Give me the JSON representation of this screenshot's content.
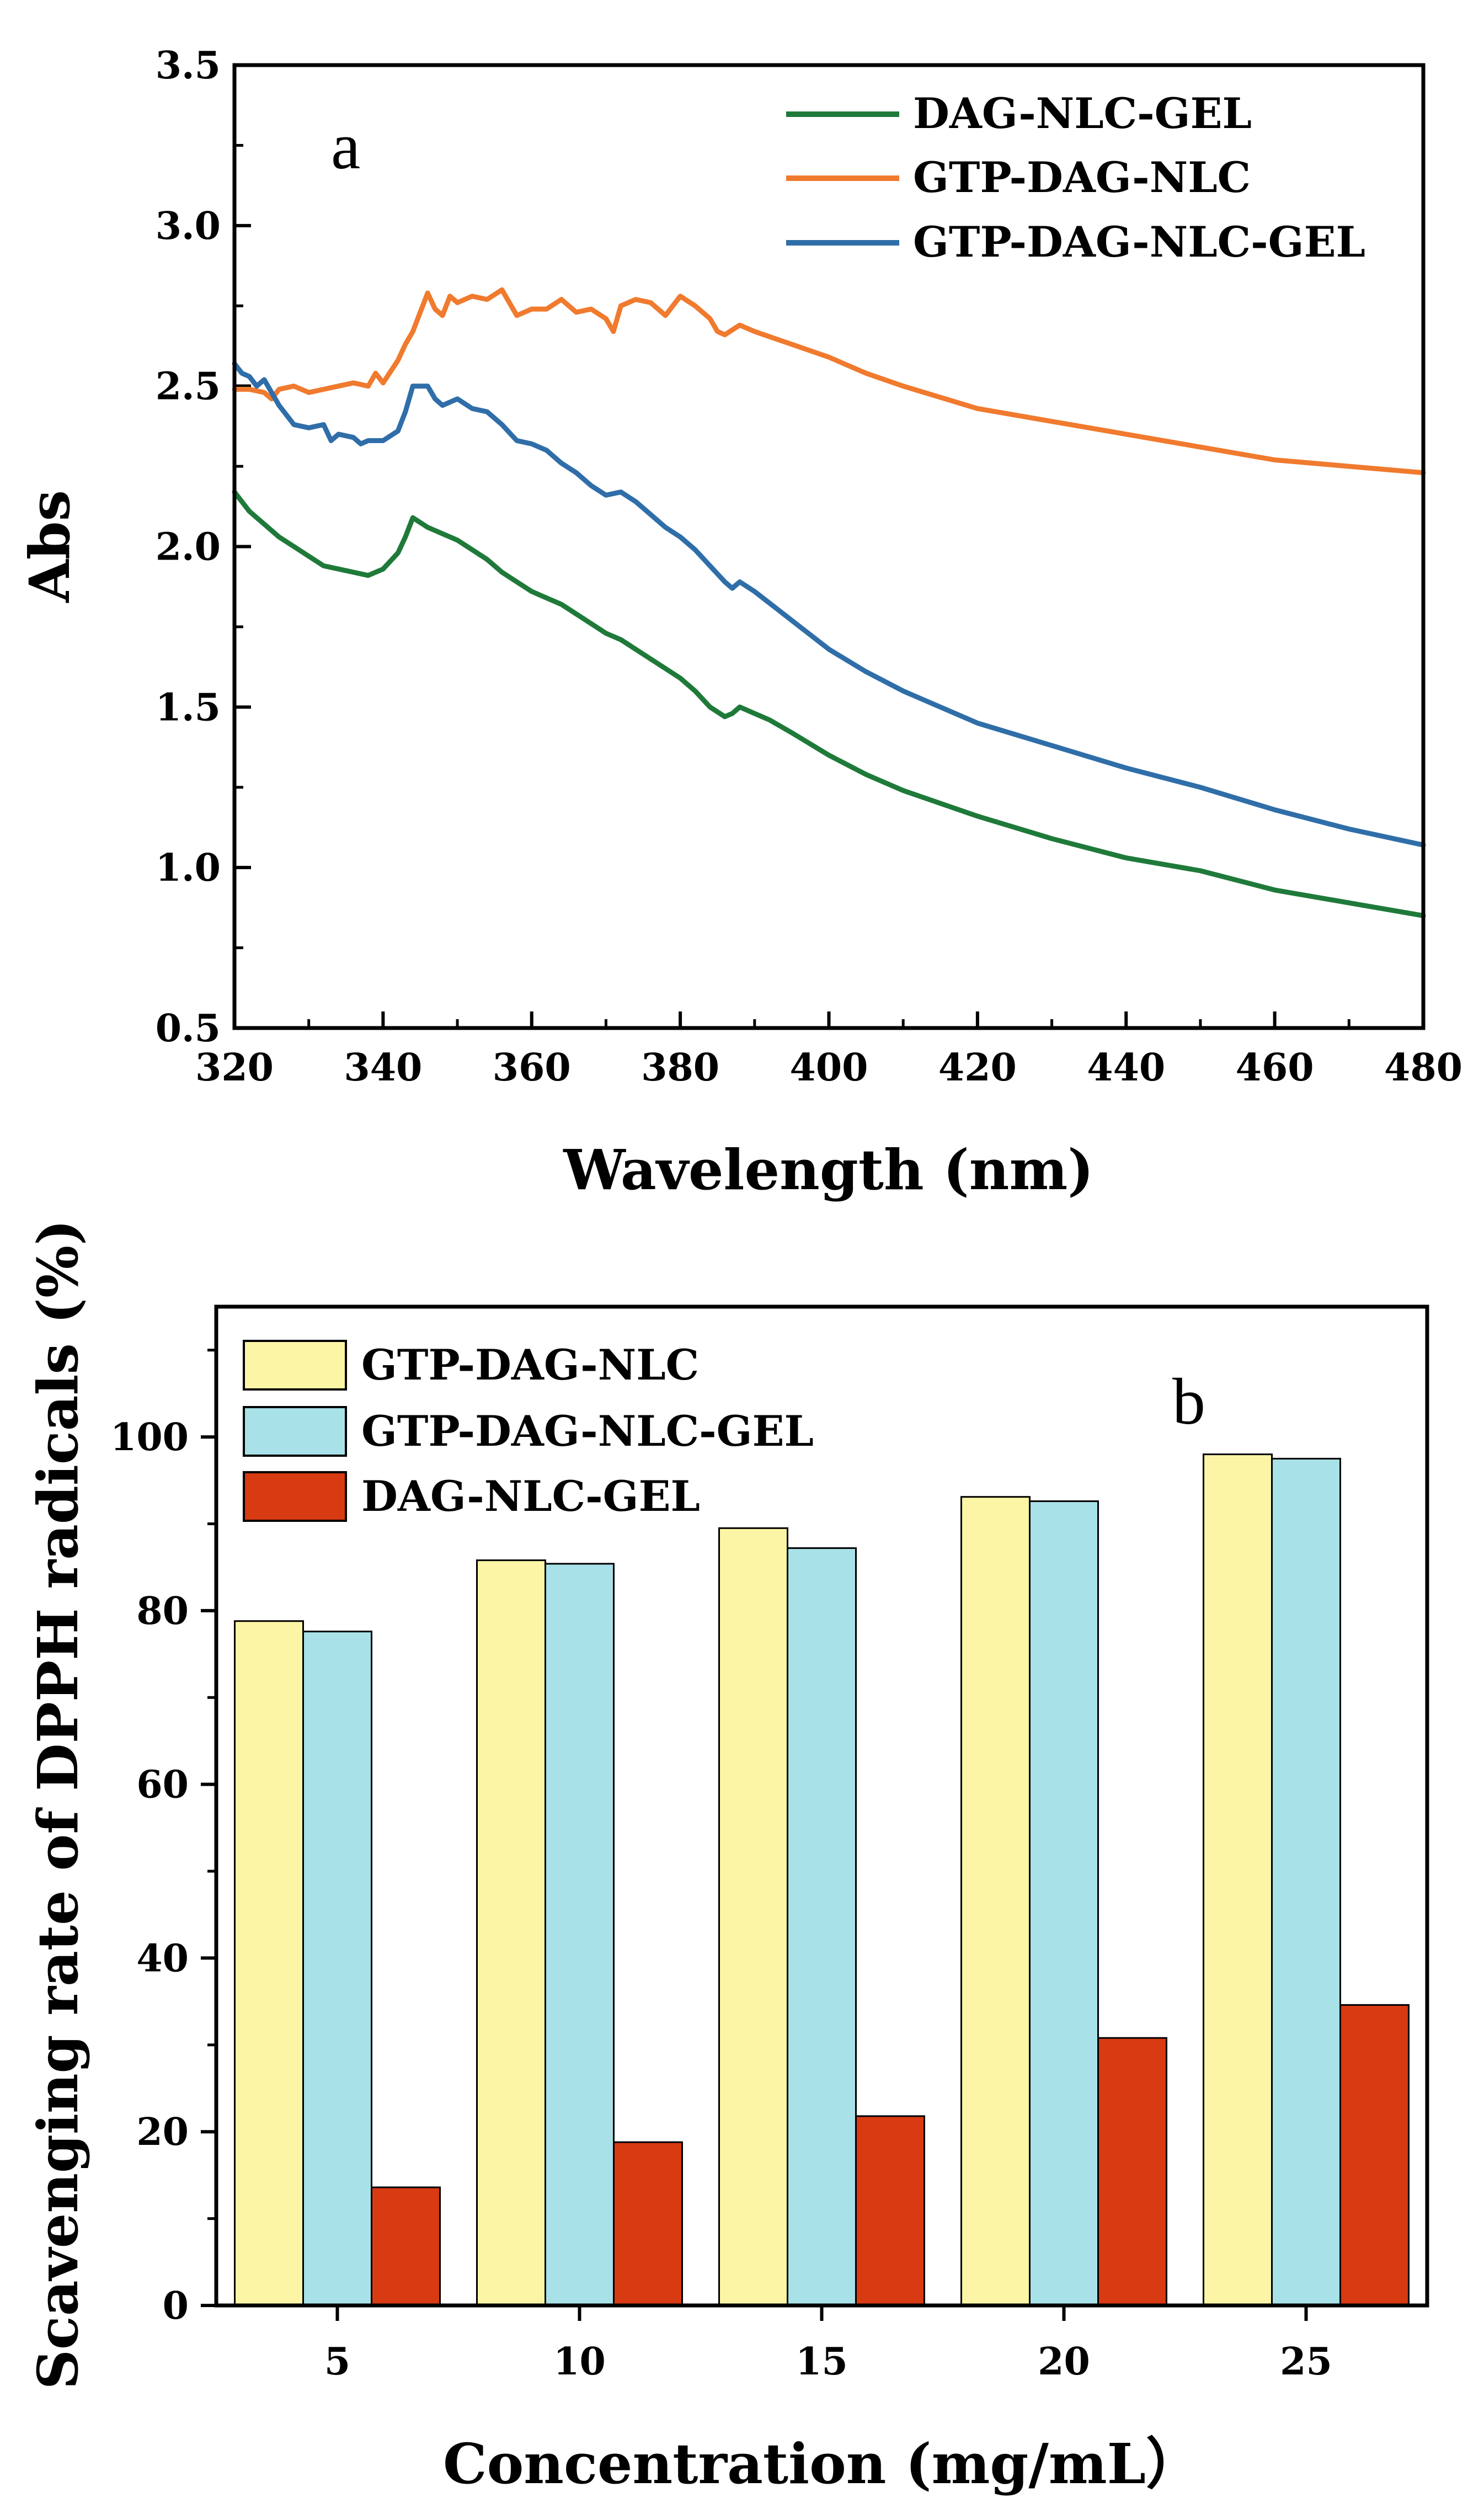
{
  "chart_data": [
    {
      "type": "line",
      "panel_label": "a",
      "title": "",
      "xlabel": "Wavelength (nm)",
      "ylabel": "Abs",
      "xlim": [
        320,
        480
      ],
      "ylim": [
        0.5,
        3.5
      ],
      "x_ticks": [
        "320",
        "340",
        "360",
        "380",
        "400",
        "420",
        "440",
        "460",
        "480"
      ],
      "y_ticks": [
        "0.5",
        "1.0",
        "1.5",
        "2.0",
        "2.5",
        "3.0",
        "3.5"
      ],
      "legend_position": "top-right",
      "series": [
        {
          "name": "DAG-NLC-GEL",
          "color": "#1f7a3a",
          "x": [
            320,
            322,
            324,
            326,
            328,
            330,
            332,
            334,
            336,
            338,
            340,
            342,
            343,
            344,
            346,
            348,
            350,
            352,
            354,
            356,
            358,
            360,
            362,
            364,
            366,
            368,
            370,
            372,
            374,
            376,
            378,
            380,
            382,
            384,
            386,
            387,
            388,
            390,
            392,
            395,
            400,
            405,
            410,
            420,
            430,
            440,
            450,
            460,
            470,
            480
          ],
          "y": [
            2.17,
            2.11,
            2.07,
            2.03,
            2.0,
            1.97,
            1.94,
            1.93,
            1.92,
            1.91,
            1.93,
            1.98,
            2.03,
            2.09,
            2.06,
            2.04,
            2.02,
            1.99,
            1.96,
            1.92,
            1.89,
            1.86,
            1.84,
            1.82,
            1.79,
            1.76,
            1.73,
            1.71,
            1.68,
            1.65,
            1.62,
            1.59,
            1.55,
            1.5,
            1.47,
            1.48,
            1.5,
            1.48,
            1.46,
            1.42,
            1.35,
            1.29,
            1.24,
            1.16,
            1.09,
            1.03,
            0.99,
            0.93,
            0.89,
            0.85
          ]
        },
        {
          "name": "GTP-DAG-NLC",
          "color": "#f07a2e",
          "x": [
            320,
            322,
            324,
            325,
            326,
            328,
            330,
            332,
            334,
            336,
            338,
            339,
            340,
            342,
            343,
            344,
            346,
            347,
            348,
            349,
            350,
            352,
            354,
            356,
            358,
            360,
            362,
            364,
            366,
            368,
            370,
            371,
            372,
            374,
            376,
            378,
            380,
            382,
            384,
            385,
            386,
            388,
            390,
            395,
            400,
            405,
            410,
            420,
            430,
            440,
            450,
            460,
            470,
            480
          ],
          "y": [
            2.49,
            2.49,
            2.48,
            2.46,
            2.49,
            2.5,
            2.48,
            2.49,
            2.5,
            2.51,
            2.5,
            2.54,
            2.51,
            2.58,
            2.63,
            2.67,
            2.79,
            2.74,
            2.72,
            2.78,
            2.76,
            2.78,
            2.77,
            2.8,
            2.72,
            2.74,
            2.74,
            2.77,
            2.73,
            2.74,
            2.71,
            2.67,
            2.75,
            2.77,
            2.76,
            2.72,
            2.78,
            2.75,
            2.71,
            2.67,
            2.66,
            2.69,
            2.67,
            2.63,
            2.59,
            2.54,
            2.5,
            2.43,
            2.39,
            2.35,
            2.31,
            2.27,
            2.25,
            2.23
          ]
        },
        {
          "name": "GTP-DAG-NLC-GEL",
          "color": "#2f6ea8",
          "x": [
            320,
            321,
            322,
            323,
            324,
            326,
            328,
            330,
            332,
            333,
            334,
            336,
            337,
            338,
            340,
            342,
            343,
            344,
            346,
            347,
            348,
            350,
            352,
            354,
            356,
            358,
            360,
            362,
            364,
            366,
            368,
            370,
            372,
            374,
            376,
            378,
            380,
            382,
            384,
            386,
            387,
            388,
            390,
            395,
            400,
            405,
            410,
            420,
            430,
            440,
            450,
            460,
            470,
            480
          ],
          "y": [
            2.57,
            2.54,
            2.53,
            2.5,
            2.52,
            2.44,
            2.38,
            2.37,
            2.38,
            2.33,
            2.35,
            2.34,
            2.32,
            2.33,
            2.33,
            2.36,
            2.42,
            2.5,
            2.5,
            2.46,
            2.44,
            2.46,
            2.43,
            2.42,
            2.38,
            2.33,
            2.32,
            2.3,
            2.26,
            2.23,
            2.19,
            2.16,
            2.17,
            2.14,
            2.1,
            2.06,
            2.03,
            1.99,
            1.94,
            1.89,
            1.87,
            1.89,
            1.86,
            1.77,
            1.68,
            1.61,
            1.55,
            1.45,
            1.38,
            1.31,
            1.25,
            1.18,
            1.12,
            1.07
          ]
        }
      ]
    },
    {
      "type": "bar",
      "panel_label": "b",
      "title": "",
      "xlabel": "Concentration (mg/mL）",
      "ylabel": "Scavenging rate of DPPH radicals (%)",
      "categories": [
        "5",
        "10",
        "15",
        "20",
        "25"
      ],
      "ylim": [
        0,
        115
      ],
      "y_ticks": [
        "0",
        "20",
        "40",
        "60",
        "80",
        "100"
      ],
      "legend_position": "top-left",
      "series": [
        {
          "name": "GTP-DAG-NLC",
          "color": "#fdf5a6",
          "values": [
            78.8,
            85.8,
            89.5,
            93.1,
            98.0
          ]
        },
        {
          "name": "GTP-DAG-NLC-GEL",
          "color": "#a8e2e8",
          "values": [
            77.6,
            85.4,
            87.2,
            92.6,
            97.5
          ]
        },
        {
          "name": "DAG-NLC-GEL",
          "color": "#d83a12",
          "values": [
            13.6,
            18.8,
            21.8,
            30.8,
            34.6
          ]
        }
      ]
    }
  ]
}
